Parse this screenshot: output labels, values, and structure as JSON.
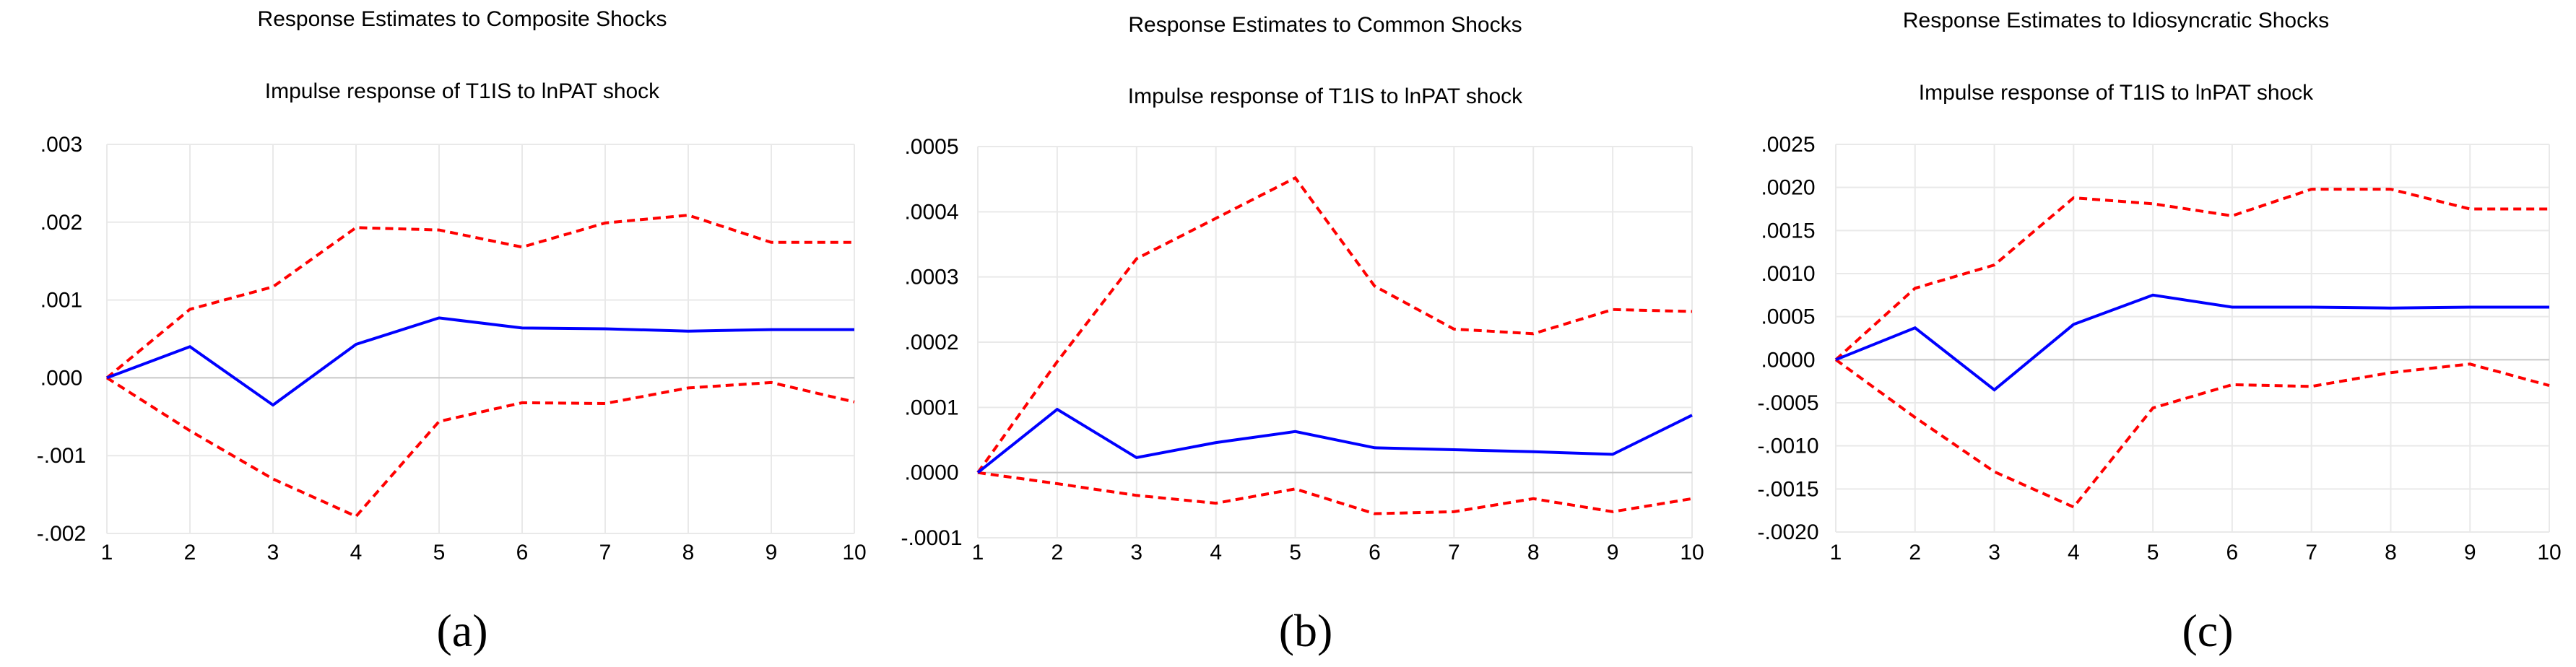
{
  "chart_data": [
    {
      "type": "line",
      "title": "Response Estimates to Composite Shocks",
      "subtitle": "Impulse response of T1IS to lnPAT shock",
      "caption": "(a)",
      "x": [
        1,
        2,
        3,
        4,
        5,
        6,
        7,
        8,
        9,
        10
      ],
      "ylim": [
        -0.002,
        0.003
      ],
      "yticks": [
        -0.002,
        -0.001,
        0.0,
        0.001,
        0.002,
        0.003
      ],
      "ytick_labels": [
        "-.002",
        "-.001",
        ".000",
        ".001",
        ".002",
        ".003"
      ],
      "grid": true,
      "series": [
        {
          "role": "estimate",
          "color": "#0000ff",
          "values": [
            0.0,
            0.0004,
            -0.00035,
            0.00043,
            0.00077,
            0.00064,
            0.00063,
            0.0006,
            0.00062,
            0.00062
          ]
        },
        {
          "role": "upper",
          "color": "#ff0000",
          "values": [
            0.0,
            0.00088,
            0.00117,
            0.00193,
            0.0019,
            0.00168,
            0.00199,
            0.00209,
            0.00174,
            0.00174
          ]
        },
        {
          "role": "lower",
          "color": "#ff0000",
          "values": [
            0.0,
            -0.00068,
            -0.0013,
            -0.00178,
            -0.00056,
            -0.00032,
            -0.00033,
            -0.00013,
            -6e-05,
            -0.00031
          ]
        }
      ]
    },
    {
      "type": "line",
      "title": "Response Estimates to Common Shocks",
      "subtitle": "Impulse response of T1IS to lnPAT shock",
      "caption": "(b)",
      "x": [
        1,
        2,
        3,
        4,
        5,
        6,
        7,
        8,
        9,
        10
      ],
      "ylim": [
        -0.0001,
        0.0005
      ],
      "yticks": [
        -0.0001,
        0.0,
        0.0001,
        0.0002,
        0.0003,
        0.0004,
        0.0005
      ],
      "ytick_labels": [
        "-.0001",
        ".0000",
        ".0001",
        ".0002",
        ".0003",
        ".0004",
        ".0005"
      ],
      "grid": true,
      "series": [
        {
          "role": "estimate",
          "color": "#0000ff",
          "values": [
            0.0,
            9.7e-05,
            2.3e-05,
            4.6e-05,
            6.3e-05,
            3.8e-05,
            3.5e-05,
            3.2e-05,
            2.8e-05,
            8.8e-05
          ]
        },
        {
          "role": "upper",
          "color": "#ff0000",
          "values": [
            0.0,
            0.00017,
            0.000328,
            0.00039,
            0.000452,
            0.000286,
            0.00022,
            0.000213,
            0.00025,
            0.000247
          ]
        },
        {
          "role": "lower",
          "color": "#ff0000",
          "values": [
            0.0,
            -1.7e-05,
            -3.5e-05,
            -4.7e-05,
            -2.5e-05,
            -6.3e-05,
            -6e-05,
            -4e-05,
            -6e-05,
            -4e-05
          ]
        }
      ]
    },
    {
      "type": "line",
      "title": "Response Estimates to Idiosyncratic Shocks",
      "subtitle": "Impulse response of T1IS to lnPAT shock",
      "caption": "(c)",
      "x": [
        1,
        2,
        3,
        4,
        5,
        6,
        7,
        8,
        9,
        10
      ],
      "ylim": [
        -0.002,
        0.0025
      ],
      "yticks": [
        -0.002,
        -0.0015,
        -0.001,
        -0.0005,
        0.0,
        0.0005,
        0.001,
        0.0015,
        0.002,
        0.0025
      ],
      "ytick_labels": [
        "-.0020",
        "-.0015",
        "-.0010",
        "-.0005",
        ".0000",
        ".0005",
        ".0010",
        ".0015",
        ".0020",
        ".0025"
      ],
      "grid": true,
      "series": [
        {
          "role": "estimate",
          "color": "#0000ff",
          "values": [
            0.0,
            0.00037,
            -0.00035,
            0.00041,
            0.00075,
            0.00061,
            0.00061,
            0.0006,
            0.00061,
            0.00061
          ]
        },
        {
          "role": "upper",
          "color": "#ff0000",
          "values": [
            0.0,
            0.00083,
            0.0011,
            0.00188,
            0.00181,
            0.00167,
            0.00198,
            0.00198,
            0.00175,
            0.00175
          ]
        },
        {
          "role": "lower",
          "color": "#ff0000",
          "values": [
            0.0,
            -0.00067,
            -0.0013,
            -0.00171,
            -0.00056,
            -0.00029,
            -0.00031,
            -0.00015,
            -5e-05,
            -0.0003
          ]
        }
      ]
    }
  ]
}
